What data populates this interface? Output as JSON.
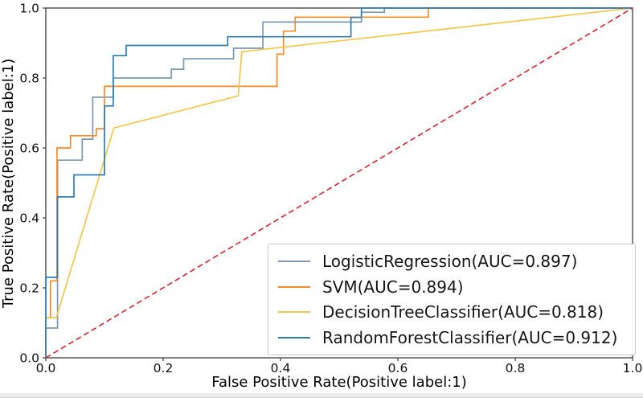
{
  "chart_data": {
    "type": "line",
    "title": "",
    "xlabel": "False Positive Rate(Positive label:1)",
    "ylabel": "True Positive Rate(Positive label:1)",
    "xlim": [
      0.0,
      1.0
    ],
    "ylim": [
      0.0,
      1.0
    ],
    "grid": false,
    "legend_position": "lower right",
    "xtick_labels": [
      "0.0",
      "0.2",
      "0.4",
      "0.6",
      "0.8",
      "1.0"
    ],
    "ytick_labels": [
      "0.0",
      "0.2",
      "0.4",
      "0.6",
      "0.8",
      "1.0"
    ],
    "xticks": [
      0.0,
      0.2,
      0.4,
      0.6,
      0.8,
      1.0
    ],
    "yticks": [
      0.0,
      0.2,
      0.4,
      0.6,
      0.8,
      1.0
    ],
    "series": [
      {
        "id": "logistic-regression-curve",
        "name": "LogisticRegression(AUC=0.897)",
        "auc": 0.897,
        "color": "#7b99b3",
        "style": "solid",
        "points": [
          [
            0,
            0
          ],
          [
            0,
            0.085
          ],
          [
            0.02,
            0.085
          ],
          [
            0.02,
            0.565
          ],
          [
            0.062,
            0.565
          ],
          [
            0.062,
            0.625
          ],
          [
            0.08,
            0.625
          ],
          [
            0.08,
            0.745
          ],
          [
            0.115,
            0.745
          ],
          [
            0.115,
            0.8
          ],
          [
            0.214,
            0.8
          ],
          [
            0.214,
            0.825
          ],
          [
            0.235,
            0.825
          ],
          [
            0.235,
            0.855
          ],
          [
            0.32,
            0.855
          ],
          [
            0.32,
            0.885
          ],
          [
            0.37,
            0.885
          ],
          [
            0.37,
            0.96
          ],
          [
            0.538,
            0.96
          ],
          [
            0.538,
            0.988
          ],
          [
            0.577,
            0.988
          ],
          [
            0.577,
            1
          ],
          [
            1,
            1
          ]
        ]
      },
      {
        "id": "svm-curve",
        "name": "SVM(AUC=0.894)",
        "auc": 0.894,
        "color": "#f68b28",
        "style": "solid",
        "points": [
          [
            0,
            0
          ],
          [
            0,
            0.115
          ],
          [
            0.008,
            0.115
          ],
          [
            0.008,
            0.22
          ],
          [
            0.019,
            0.22
          ],
          [
            0.019,
            0.6
          ],
          [
            0.042,
            0.6
          ],
          [
            0.042,
            0.635
          ],
          [
            0.086,
            0.635
          ],
          [
            0.086,
            0.655
          ],
          [
            0.1,
            0.655
          ],
          [
            0.1,
            0.776
          ],
          [
            0.394,
            0.776
          ],
          [
            0.394,
            0.868
          ],
          [
            0.405,
            0.868
          ],
          [
            0.405,
            0.934
          ],
          [
            0.425,
            0.934
          ],
          [
            0.425,
            0.974
          ],
          [
            0.652,
            0.974
          ],
          [
            0.652,
            1
          ],
          [
            1,
            1
          ]
        ]
      },
      {
        "id": "decision-tree-curve",
        "name": "DecisionTreeClassifier(AUC=0.818)",
        "auc": 0.818,
        "color": "#f2c84b",
        "style": "solid",
        "points": [
          [
            0,
            0
          ],
          [
            0,
            0.115
          ],
          [
            0.018,
            0.115
          ],
          [
            0.116,
            0.657
          ],
          [
            0.328,
            0.749
          ],
          [
            0.334,
            0.875
          ],
          [
            1,
            1
          ]
        ]
      },
      {
        "id": "random-forest-curve",
        "name": "RandomForestClassifier(AUC=0.912)",
        "auc": 0.912,
        "color": "#2e7cb8",
        "style": "solid",
        "points": [
          [
            0,
            0
          ],
          [
            0,
            0.23
          ],
          [
            0.02,
            0.23
          ],
          [
            0.02,
            0.46
          ],
          [
            0.048,
            0.46
          ],
          [
            0.048,
            0.523
          ],
          [
            0.1,
            0.523
          ],
          [
            0.1,
            0.72
          ],
          [
            0.115,
            0.72
          ],
          [
            0.115,
            0.864
          ],
          [
            0.137,
            0.864
          ],
          [
            0.137,
            0.893
          ],
          [
            0.31,
            0.893
          ],
          [
            0.31,
            0.918
          ],
          [
            0.52,
            0.918
          ],
          [
            0.52,
            0.973
          ],
          [
            0.538,
            0.973
          ],
          [
            0.538,
            1
          ],
          [
            1,
            1
          ]
        ]
      },
      {
        "id": "chance-diagonal",
        "name": "chance-diagonal",
        "color": "#d9232e",
        "style": "dashed",
        "in_legend": false,
        "points": [
          [
            0,
            0
          ],
          [
            1,
            1
          ]
        ]
      }
    ],
    "axis_color": "#3c3c3c",
    "tick_label_color": "#111111"
  }
}
